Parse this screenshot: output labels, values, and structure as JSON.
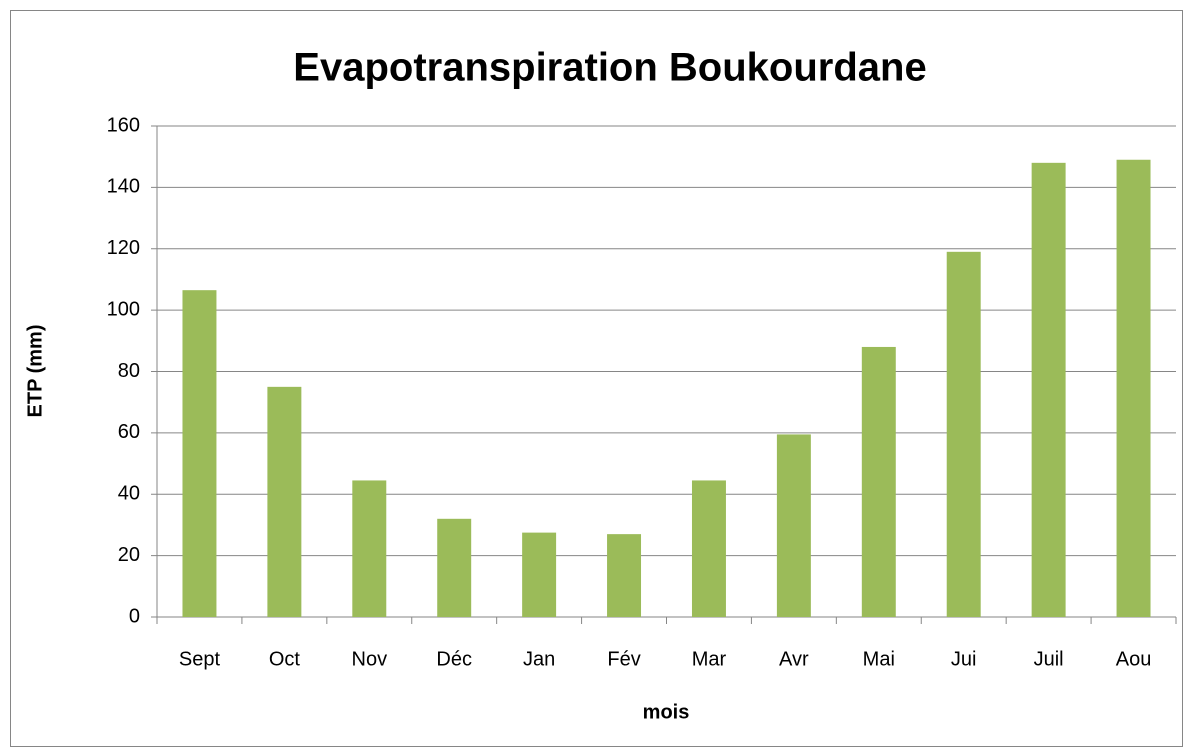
{
  "chart_data": {
    "type": "bar",
    "title": "Evapotranspiration Boukourdane",
    "x_label": "mois",
    "y_label": "ETP (mm)",
    "categories": [
      "Sept",
      "Oct",
      "Nov",
      "Déc",
      "Jan",
      "Fév",
      "Mar",
      "Avr",
      "Mai",
      "Jui",
      "Juil",
      "Aou"
    ],
    "values": [
      106.5,
      75,
      44.5,
      32,
      27.5,
      27,
      44.5,
      59.5,
      88,
      119,
      148,
      149
    ],
    "color": "#9bbb59",
    "ylim": [
      0,
      160
    ],
    "yticks": [
      0,
      20,
      40,
      60,
      80,
      100,
      120,
      140,
      160
    ],
    "grid": true
  }
}
